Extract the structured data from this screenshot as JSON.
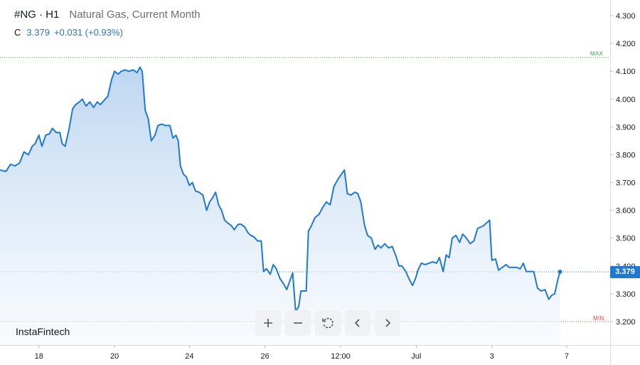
{
  "header": {
    "symbol": "#NG · H1",
    "name": "Natural Gas, Current Month",
    "close_label": "C",
    "close_value": "3.379",
    "change": "+0.031 (+0.93%)"
  },
  "brand": "InstaFintech",
  "toolbar": [
    {
      "name": "zoom-in-button",
      "icon": "plus-icon"
    },
    {
      "name": "zoom-out-button",
      "icon": "minus-icon"
    },
    {
      "name": "reset-button",
      "icon": "reset-icon"
    },
    {
      "name": "scroll-left-button",
      "icon": "chevron-left-icon"
    },
    {
      "name": "scroll-right-button",
      "icon": "chevron-right-icon"
    }
  ],
  "colors": {
    "line": "#1f78d1",
    "fill_top": "#b9d4f0",
    "fill_bottom": "#f4f8fd",
    "max": "#3aa356",
    "min": "#e04545",
    "badge": "#1f78d1"
  },
  "chart_data": {
    "type": "area",
    "y_ticks": [
      "4.300",
      "4.200",
      "4.100",
      "4.000",
      "3.900",
      "3.800",
      "3.700",
      "3.600",
      "3.500",
      "3.400",
      "3.300",
      "3.200"
    ],
    "ylim": [
      3.14,
      4.32
    ],
    "x_tick_labels": [
      "18",
      "20",
      "24",
      "26",
      "12:00",
      "Jul",
      "3",
      "7"
    ],
    "x_tick_positions": [
      4.2,
      14.3,
      24.3,
      34.4,
      44.5,
      54.6,
      64.7,
      74.7
    ],
    "xlim": [
      -1,
      80.5
    ],
    "last_value": 3.379,
    "last_label": "3.379",
    "max_value": 4.15,
    "max_label": "MAX",
    "min_value": 3.2,
    "min_label": "MIN",
    "series": [
      {
        "points": [
          [
            -1,
            3.745
          ],
          [
            -0.2,
            3.74
          ],
          [
            0.4,
            3.765
          ],
          [
            1.0,
            3.76
          ],
          [
            1.6,
            3.77
          ],
          [
            2.2,
            3.81
          ],
          [
            2.8,
            3.8
          ],
          [
            3.3,
            3.83
          ],
          [
            3.7,
            3.84
          ],
          [
            4.2,
            3.87
          ],
          [
            4.6,
            3.83
          ],
          [
            5.1,
            3.87
          ],
          [
            5.6,
            3.875
          ],
          [
            6.0,
            3.895
          ],
          [
            6.5,
            3.88
          ],
          [
            7.0,
            3.88
          ],
          [
            7.3,
            3.84
          ],
          [
            7.7,
            3.83
          ],
          [
            8.2,
            3.89
          ],
          [
            8.7,
            3.965
          ],
          [
            9.1,
            3.98
          ],
          [
            9.6,
            3.99
          ],
          [
            10.0,
            4.0
          ],
          [
            10.5,
            3.975
          ],
          [
            11.0,
            3.99
          ],
          [
            11.5,
            3.97
          ],
          [
            12.0,
            3.99
          ],
          [
            12.4,
            3.98
          ],
          [
            12.9,
            3.995
          ],
          [
            13.4,
            4.01
          ],
          [
            13.9,
            4.07
          ],
          [
            14.3,
            4.1
          ],
          [
            14.8,
            4.09
          ],
          [
            15.2,
            4.1
          ],
          [
            15.7,
            4.105
          ],
          [
            16.2,
            4.1
          ],
          [
            16.8,
            4.105
          ],
          [
            17.3,
            4.095
          ],
          [
            17.7,
            4.115
          ],
          [
            18.0,
            4.1
          ],
          [
            18.4,
            3.96
          ],
          [
            18.8,
            3.93
          ],
          [
            19.2,
            3.85
          ],
          [
            19.7,
            3.87
          ],
          [
            20.1,
            3.905
          ],
          [
            20.6,
            3.91
          ],
          [
            21.1,
            3.905
          ],
          [
            21.7,
            3.905
          ],
          [
            22.1,
            3.86
          ],
          [
            22.5,
            3.87
          ],
          [
            22.8,
            3.85
          ],
          [
            23.1,
            3.76
          ],
          [
            23.5,
            3.73
          ],
          [
            23.9,
            3.72
          ],
          [
            24.3,
            3.69
          ],
          [
            24.7,
            3.7
          ],
          [
            25.1,
            3.67
          ],
          [
            25.6,
            3.665
          ],
          [
            26.1,
            3.655
          ],
          [
            26.6,
            3.6
          ],
          [
            27.0,
            3.63
          ],
          [
            27.4,
            3.645
          ],
          [
            27.8,
            3.665
          ],
          [
            28.2,
            3.62
          ],
          [
            28.6,
            3.6
          ],
          [
            29.0,
            3.565
          ],
          [
            29.4,
            3.555
          ],
          [
            29.9,
            3.545
          ],
          [
            30.3,
            3.53
          ],
          [
            30.8,
            3.55
          ],
          [
            31.2,
            3.55
          ],
          [
            31.7,
            3.54
          ],
          [
            32.1,
            3.52
          ],
          [
            32.5,
            3.51
          ],
          [
            32.9,
            3.505
          ],
          [
            33.4,
            3.49
          ],
          [
            33.9,
            3.49
          ],
          [
            34.2,
            3.38
          ],
          [
            34.6,
            3.39
          ],
          [
            35.1,
            3.37
          ],
          [
            35.5,
            3.405
          ],
          [
            35.9,
            3.39
          ],
          [
            36.4,
            3.355
          ],
          [
            36.9,
            3.335
          ],
          [
            37.3,
            3.315
          ],
          [
            37.7,
            3.345
          ],
          [
            38.1,
            3.375
          ],
          [
            38.5,
            3.235
          ],
          [
            38.9,
            3.255
          ],
          [
            39.2,
            3.31
          ],
          [
            39.6,
            3.31
          ],
          [
            39.9,
            3.31
          ],
          [
            40.2,
            3.525
          ],
          [
            40.6,
            3.545
          ],
          [
            41.1,
            3.575
          ],
          [
            41.6,
            3.585
          ],
          [
            42.1,
            3.61
          ],
          [
            42.6,
            3.63
          ],
          [
            43.1,
            3.62
          ],
          [
            43.6,
            3.685
          ],
          [
            44.1,
            3.71
          ],
          [
            44.6,
            3.73
          ],
          [
            45.0,
            3.745
          ],
          [
            45.4,
            3.66
          ],
          [
            45.9,
            3.655
          ],
          [
            46.4,
            3.665
          ],
          [
            46.8,
            3.66
          ],
          [
            47.2,
            3.63
          ],
          [
            47.7,
            3.545
          ],
          [
            48.1,
            3.51
          ],
          [
            48.6,
            3.5
          ],
          [
            49.1,
            3.46
          ],
          [
            49.5,
            3.475
          ],
          [
            49.9,
            3.465
          ],
          [
            50.4,
            3.48
          ],
          [
            50.9,
            3.465
          ],
          [
            51.4,
            3.47
          ],
          [
            51.9,
            3.435
          ],
          [
            52.3,
            3.4
          ],
          [
            52.7,
            3.4
          ],
          [
            53.2,
            3.38
          ],
          [
            53.7,
            3.35
          ],
          [
            54.1,
            3.33
          ],
          [
            54.5,
            3.355
          ],
          [
            54.9,
            3.39
          ],
          [
            55.3,
            3.41
          ],
          [
            55.8,
            3.405
          ],
          [
            56.3,
            3.41
          ],
          [
            56.8,
            3.415
          ],
          [
            57.3,
            3.41
          ],
          [
            57.7,
            3.43
          ],
          [
            58.2,
            3.38
          ],
          [
            58.6,
            3.44
          ],
          [
            59.0,
            3.43
          ],
          [
            59.4,
            3.5
          ],
          [
            59.9,
            3.51
          ],
          [
            60.4,
            3.485
          ],
          [
            60.8,
            3.515
          ],
          [
            61.3,
            3.5
          ],
          [
            61.8,
            3.48
          ],
          [
            62.3,
            3.49
          ],
          [
            62.8,
            3.535
          ],
          [
            63.2,
            3.54
          ],
          [
            63.6,
            3.545
          ],
          [
            64.0,
            3.555
          ],
          [
            64.4,
            3.565
          ],
          [
            64.7,
            3.42
          ],
          [
            65.2,
            3.425
          ],
          [
            65.6,
            3.385
          ],
          [
            66.1,
            3.395
          ],
          [
            66.6,
            3.405
          ],
          [
            67.0,
            3.395
          ],
          [
            67.5,
            3.395
          ],
          [
            68.0,
            3.395
          ],
          [
            68.5,
            3.39
          ],
          [
            68.9,
            3.41
          ],
          [
            69.3,
            3.38
          ],
          [
            69.8,
            3.38
          ],
          [
            70.3,
            3.38
          ],
          [
            70.8,
            3.32
          ],
          [
            71.3,
            3.31
          ],
          [
            71.8,
            3.315
          ],
          [
            72.3,
            3.28
          ],
          [
            72.7,
            3.295
          ],
          [
            73.1,
            3.3
          ],
          [
            73.5,
            3.35
          ],
          [
            73.8,
            3.379
          ]
        ]
      }
    ]
  }
}
